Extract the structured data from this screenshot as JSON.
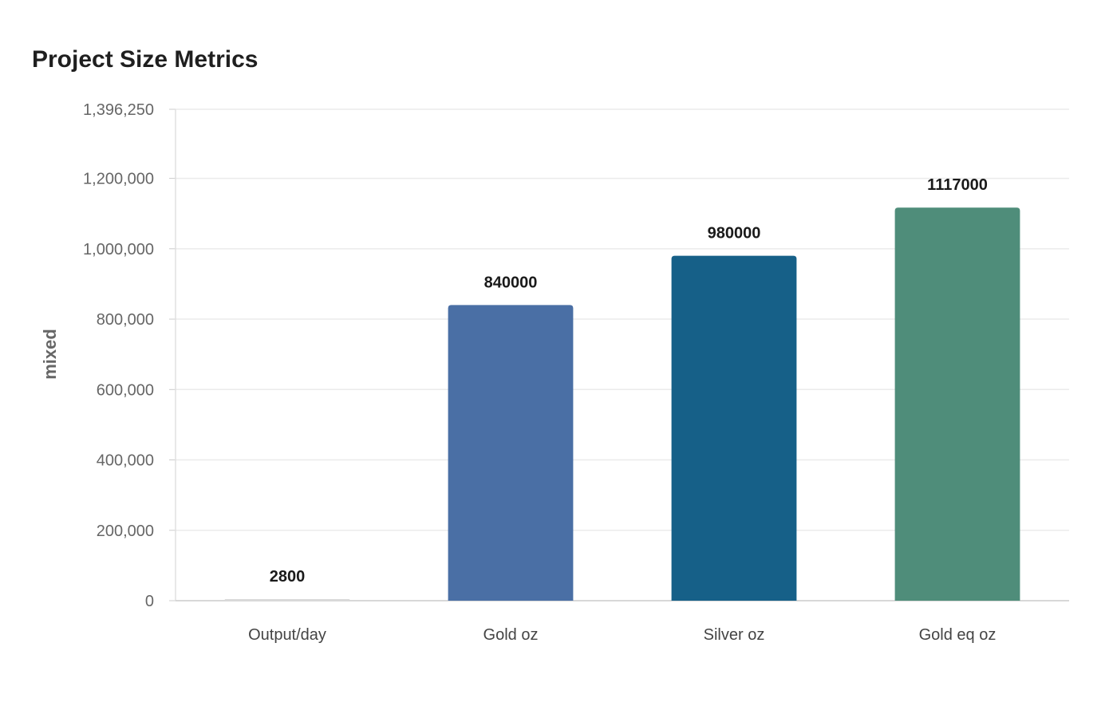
{
  "chart_data": {
    "type": "bar",
    "title": "Project Size Metrics",
    "xlabel": "",
    "ylabel": "mixed",
    "categories": [
      "Output/day",
      "Gold oz",
      "Silver oz",
      "Gold eq oz"
    ],
    "values": [
      2800,
      840000,
      980000,
      1117000
    ],
    "data_labels": [
      "2800",
      "840000",
      "980000",
      "1117000"
    ],
    "colors": [
      "#d9d9d9",
      "#4a6fa5",
      "#166088",
      "#4f8d7a"
    ],
    "ylim": [
      0,
      1396250
    ],
    "yticks": [
      0,
      200000,
      400000,
      600000,
      800000,
      1000000,
      1200000,
      1396250
    ],
    "ytick_labels": [
      "0",
      "200,000",
      "400,000",
      "600,000",
      "800,000",
      "1,000,000",
      "1,200,000",
      "1,396,250"
    ],
    "grid": true,
    "legend": "none"
  }
}
